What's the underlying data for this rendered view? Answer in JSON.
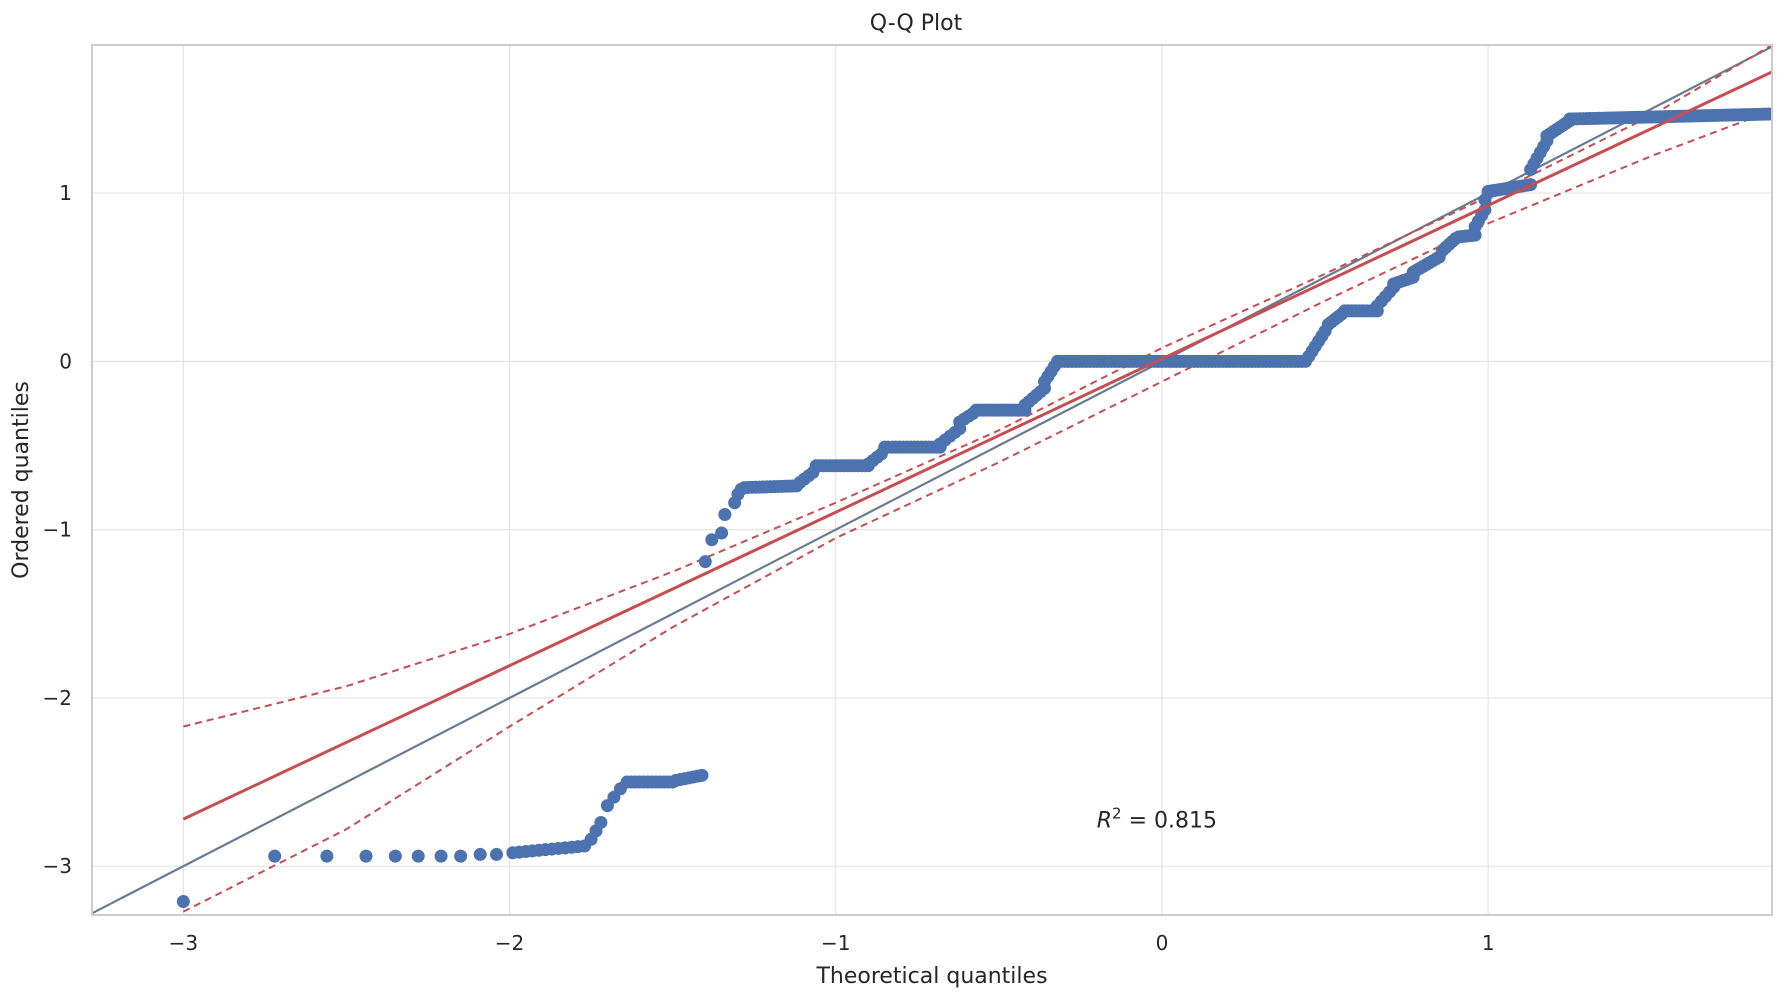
{
  "chart_data": {
    "type": "scatter",
    "title": "Q-Q Plot",
    "xlabel": "Theoretical quantiles",
    "ylabel": "Ordered quantiles",
    "xlim": [
      -3.28,
      1.87
    ],
    "ylim": [
      -3.29,
      1.88
    ],
    "x_ticks": [
      -3,
      -2,
      -1,
      0,
      1
    ],
    "y_ticks": [
      -3,
      -2,
      -1,
      0,
      1
    ],
    "x_tick_labels": [
      "−3",
      "−2",
      "−1",
      "0",
      "1"
    ],
    "y_tick_labels": [
      "−3",
      "−2",
      "−1",
      "0",
      "1"
    ],
    "grid": true,
    "annotation": {
      "text_main": "R",
      "text_sup": "2",
      "text_rest": " = 0.815",
      "x": -0.2,
      "y": -2.77
    },
    "colors": {
      "points": "#4c72b0",
      "fit": "#c44e52",
      "band": "#c44e52",
      "reference": "#6a7b8f",
      "grid": "#e5e5e5",
      "spine": "#cccccc"
    },
    "reference_line": {
      "slope": 1,
      "intercept": 0
    },
    "fit_line": {
      "x": [
        -3.0,
        1.87
      ],
      "y": [
        -2.72,
        1.72
      ]
    },
    "band_upper": {
      "x": [
        -3.0,
        -2.5,
        -2.0,
        -1.5,
        -1.0,
        -0.5,
        0.0,
        0.5,
        1.0,
        1.5,
        1.87
      ],
      "y": [
        -2.17,
        -1.93,
        -1.62,
        -1.25,
        -0.84,
        -0.41,
        0.08,
        0.52,
        0.98,
        1.46,
        1.88
      ]
    },
    "band_lower": {
      "x": [
        -3.0,
        -2.5,
        -2.0,
        -1.5,
        -1.0,
        -0.5,
        0.0,
        0.5,
        1.0,
        1.5,
        1.87
      ],
      "y": [
        -3.27,
        -2.78,
        -2.17,
        -1.58,
        -1.05,
        -0.6,
        -0.12,
        0.36,
        0.82,
        1.22,
        1.49
      ]
    },
    "segments": [
      {
        "x": [
          -3.0,
          -3.0
        ],
        "y": [
          -3.21,
          -3.21
        ],
        "n": 1
      },
      {
        "x": [
          -2.72,
          -2.72
        ],
        "y": [
          -2.94,
          -2.94
        ],
        "n": 1
      },
      {
        "x": [
          -2.56,
          -2.56
        ],
        "y": [
          -2.94,
          -2.94
        ],
        "n": 1
      },
      {
        "x": [
          -2.44,
          -2.44
        ],
        "y": [
          -2.94,
          -2.94
        ],
        "n": 1
      },
      {
        "x": [
          -2.35,
          -2.35
        ],
        "y": [
          -2.94,
          -2.94
        ],
        "n": 1
      },
      {
        "x": [
          -2.28,
          -2.28
        ],
        "y": [
          -2.94,
          -2.94
        ],
        "n": 1
      },
      {
        "x": [
          -2.21,
          -2.21
        ],
        "y": [
          -2.94,
          -2.94
        ],
        "n": 1
      },
      {
        "x": [
          -2.15,
          -2.15
        ],
        "y": [
          -2.94,
          -2.94
        ],
        "n": 1
      },
      {
        "x": [
          -2.09,
          -2.09
        ],
        "y": [
          -2.93,
          -2.93
        ],
        "n": 1
      },
      {
        "x": [
          -2.04,
          -2.04
        ],
        "y": [
          -2.93,
          -2.93
        ],
        "n": 1
      },
      {
        "x": [
          -1.99,
          -1.77
        ],
        "y": [
          -2.92,
          -2.88
        ],
        "n": 12
      },
      {
        "x": [
          -1.75,
          -1.72
        ],
        "y": [
          -2.84,
          -2.74
        ],
        "n": 3
      },
      {
        "x": [
          -1.7,
          -1.66
        ],
        "y": [
          -2.64,
          -2.54
        ],
        "n": 3
      },
      {
        "x": [
          -1.64,
          -1.5
        ],
        "y": [
          -2.5,
          -2.5
        ],
        "n": 12
      },
      {
        "x": [
          -1.49,
          -1.41
        ],
        "y": [
          -2.49,
          -2.46
        ],
        "n": 7
      },
      {
        "x": [
          -1.4,
          -1.4
        ],
        "y": [
          -1.19,
          -1.19
        ],
        "n": 1
      },
      {
        "x": [
          -1.38,
          -1.35
        ],
        "y": [
          -1.06,
          -1.02
        ],
        "n": 2
      },
      {
        "x": [
          -1.34,
          -1.31
        ],
        "y": [
          -0.91,
          -0.84
        ],
        "n": 2
      },
      {
        "x": [
          -1.3,
          -1.29
        ],
        "y": [
          -0.79,
          -0.76
        ],
        "n": 2
      },
      {
        "x": [
          -1.28,
          -1.12
        ],
        "y": [
          -0.75,
          -0.74
        ],
        "n": 15
      },
      {
        "x": [
          -1.11,
          -1.07
        ],
        "y": [
          -0.72,
          -0.66
        ],
        "n": 4
      },
      {
        "x": [
          -1.06,
          -0.9
        ],
        "y": [
          -0.62,
          -0.62
        ],
        "n": 16
      },
      {
        "x": [
          -0.9,
          -0.86
        ],
        "y": [
          -0.61,
          -0.55
        ],
        "n": 4
      },
      {
        "x": [
          -0.85,
          -0.68
        ],
        "y": [
          -0.51,
          -0.51
        ],
        "n": 16
      },
      {
        "x": [
          -0.68,
          -0.62
        ],
        "y": [
          -0.49,
          -0.4
        ],
        "n": 5
      },
      {
        "x": [
          -0.62,
          -0.58
        ],
        "y": [
          -0.36,
          -0.31
        ],
        "n": 4
      },
      {
        "x": [
          -0.57,
          -0.42
        ],
        "y": [
          -0.29,
          -0.29
        ],
        "n": 16
      },
      {
        "x": [
          -0.42,
          -0.36
        ],
        "y": [
          -0.26,
          -0.16
        ],
        "n": 6
      },
      {
        "x": [
          -0.36,
          -0.32
        ],
        "y": [
          -0.12,
          0.0
        ],
        "n": 5
      },
      {
        "x": [
          -0.32,
          0.44
        ],
        "y": [
          0.0,
          0.0
        ],
        "n": 70
      },
      {
        "x": [
          0.45,
          0.5
        ],
        "y": [
          0.03,
          0.18
        ],
        "n": 6
      },
      {
        "x": [
          0.51,
          0.55
        ],
        "y": [
          0.22,
          0.28
        ],
        "n": 5
      },
      {
        "x": [
          0.56,
          0.66
        ],
        "y": [
          0.3,
          0.3
        ],
        "n": 10
      },
      {
        "x": [
          0.66,
          0.71
        ],
        "y": [
          0.33,
          0.44
        ],
        "n": 5
      },
      {
        "x": [
          0.71,
          0.77
        ],
        "y": [
          0.46,
          0.5
        ],
        "n": 7
      },
      {
        "x": [
          0.77,
          0.85
        ],
        "y": [
          0.53,
          0.62
        ],
        "n": 9
      },
      {
        "x": [
          0.86,
          0.9
        ],
        "y": [
          0.66,
          0.73
        ],
        "n": 5
      },
      {
        "x": [
          0.91,
          0.96
        ],
        "y": [
          0.74,
          0.75
        ],
        "n": 6
      },
      {
        "x": [
          0.96,
          0.99
        ],
        "y": [
          0.8,
          0.9
        ],
        "n": 4
      },
      {
        "x": [
          0.99,
          1.0
        ],
        "y": [
          0.96,
          1.0
        ],
        "n": 2
      },
      {
        "x": [
          1.0,
          1.13
        ],
        "y": [
          1.01,
          1.05
        ],
        "n": 14
      },
      {
        "x": [
          1.13,
          1.18
        ],
        "y": [
          1.14,
          1.31
        ],
        "n": 6
      },
      {
        "x": [
          1.18,
          1.25
        ],
        "y": [
          1.34,
          1.43
        ],
        "n": 8
      },
      {
        "x": [
          1.25,
          1.87
        ],
        "y": [
          1.44,
          1.47
        ],
        "n": 62
      }
    ]
  }
}
